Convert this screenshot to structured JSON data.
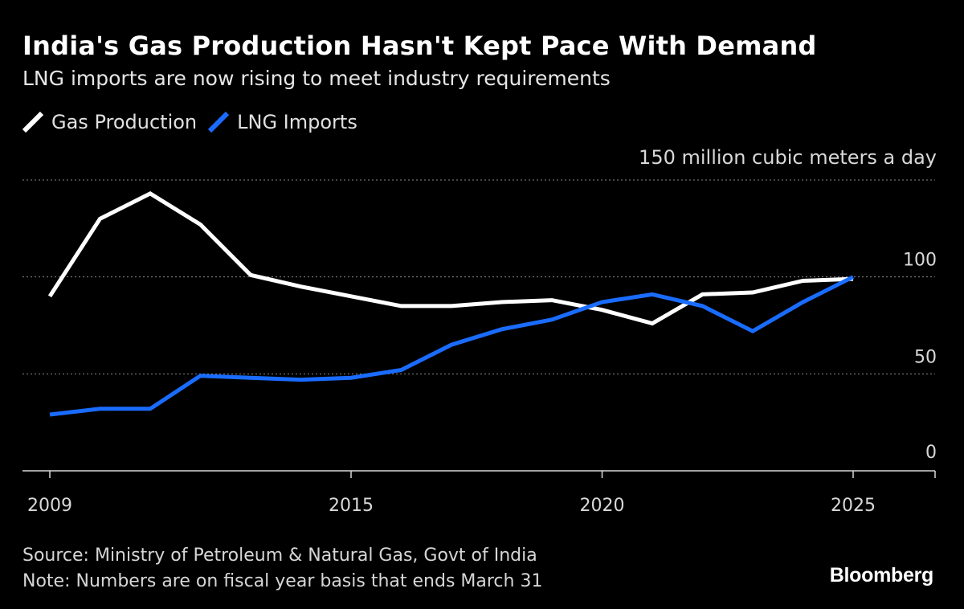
{
  "title": "India's Gas Production Hasn't Kept Pace With Demand",
  "subtitle": "LNG imports are now rising to meet industry requirements",
  "footer": {
    "source": "Source: Ministry of Petroleum & Natural Gas, Govt of India",
    "note": "Note: Numbers are on fiscal year basis that ends March 31"
  },
  "logo_text": "Bloomberg",
  "chart_data": {
    "type": "line",
    "title": "India's Gas Production Hasn't Kept Pace With Demand",
    "subtitle": "LNG imports are now rising to meet industry requirements",
    "ylabel": "150 million cubic meters a day",
    "xlim": [
      2009,
      2026.7
    ],
    "ylim": [
      0,
      150
    ],
    "x_ticks": [
      2009,
      2015,
      2020,
      2025
    ],
    "y_ticks": [
      0,
      50,
      100,
      150
    ],
    "y_tick_labels": [
      "0",
      "50",
      "100",
      "150 million cubic meters a day"
    ],
    "grid": true,
    "legend_position": "top-left",
    "x": [
      2009,
      2010,
      2011,
      2012,
      2013,
      2014,
      2015,
      2016,
      2017,
      2018,
      2019,
      2020,
      2021,
      2022,
      2023,
      2024,
      2025
    ],
    "series": [
      {
        "name": "Gas Production",
        "color": "#ffffff",
        "values": [
          90,
          130,
          143,
          127,
          101,
          95,
          90,
          85,
          85,
          87,
          88,
          83,
          76,
          91,
          92,
          98,
          99
        ]
      },
      {
        "name": "LNG Imports",
        "color": "#1a6cff",
        "values": [
          29,
          32,
          32,
          49,
          48,
          47,
          48,
          52,
          65,
          73,
          78,
          87,
          91,
          85,
          72,
          87,
          100
        ]
      }
    ]
  }
}
